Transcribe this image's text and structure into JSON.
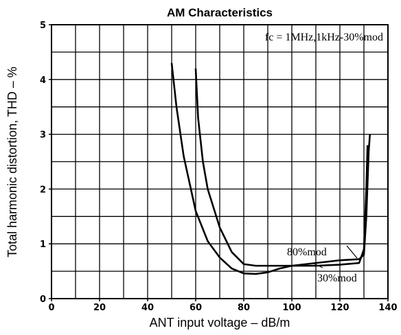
{
  "chart_data": {
    "type": "line",
    "title": "AM Characteristics",
    "x_label": "ANT input voltage – dB/m",
    "y_label": "Total harmonic distortion, THD – %",
    "annotation": "fc = 1MHz,1kHz-30%mod",
    "xlim": [
      0,
      140
    ],
    "ylim": [
      0,
      5
    ],
    "xticks": [
      0,
      20,
      40,
      60,
      80,
      100,
      120,
      140
    ],
    "yticks": [
      0,
      1,
      2,
      3,
      4,
      5
    ],
    "xgrid": [
      0,
      10,
      20,
      30,
      40,
      50,
      60,
      70,
      80,
      90,
      100,
      110,
      120,
      130,
      140
    ],
    "ygrid": [
      0,
      0.5,
      1,
      1.5,
      2,
      2.5,
      3,
      3.5,
      4,
      4.5,
      5
    ],
    "grid": true,
    "series": [
      {
        "name": "80%mod",
        "color": "#000000",
        "x": [
          50,
          52,
          55,
          60,
          65,
          70,
          75,
          80,
          85,
          90,
          95,
          100,
          110,
          120,
          128,
          130,
          131,
          132,
          132.5
        ],
        "values": [
          4.3,
          3.5,
          2.6,
          1.6,
          1.05,
          0.75,
          0.55,
          0.46,
          0.45,
          0.48,
          0.55,
          0.6,
          0.65,
          0.7,
          0.72,
          0.8,
          1.5,
          2.7,
          3.0
        ]
      },
      {
        "name": "30%mod",
        "color": "#000000",
        "x": [
          60,
          61,
          63,
          65,
          70,
          75,
          80,
          85,
          90,
          100,
          110,
          120,
          128,
          130,
          131,
          131.5
        ],
        "values": [
          4.2,
          3.3,
          2.5,
          2.0,
          1.3,
          0.85,
          0.63,
          0.6,
          0.6,
          0.6,
          0.6,
          0.62,
          0.65,
          0.9,
          2.0,
          2.8
        ]
      }
    ]
  }
}
